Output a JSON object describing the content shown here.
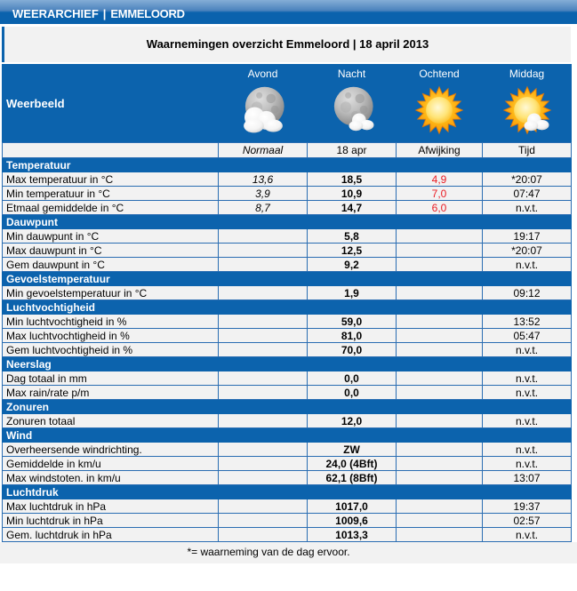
{
  "header": {
    "brand": "WEERARCHIEF",
    "divider": "|",
    "location": "EMMELOORD"
  },
  "title": "Waarnemingen overzicht Emmeloord | 18 april 2013",
  "weerbeeld": {
    "label": "Weerbeeld",
    "columns": [
      {
        "label": "Avond",
        "icon": "moon-clouds-icon"
      },
      {
        "label": "Nacht",
        "icon": "moon-cloud-icon"
      },
      {
        "label": "Ochtend",
        "icon": "sun-icon"
      },
      {
        "label": "Middag",
        "icon": "sun-cloud-icon"
      }
    ]
  },
  "subheader": [
    "Normaal",
    "18 apr",
    "Afwijking",
    "Tijd"
  ],
  "sections": [
    {
      "title": "Temperatuur",
      "rows": [
        {
          "label": "Max temperatuur in °C",
          "normaal": "13,6",
          "value": "18,5",
          "afwijking": "4,9",
          "tijd": "*20:07"
        },
        {
          "label": "Min temperatuur in °C",
          "normaal": "3,9",
          "value": "10,9",
          "afwijking": "7,0",
          "tijd": "07:47"
        },
        {
          "label": "Etmaal gemiddelde in °C",
          "normaal": "8,7",
          "value": "14,7",
          "afwijking": "6,0",
          "tijd": "n.v.t."
        }
      ]
    },
    {
      "title": "Dauwpunt",
      "rows": [
        {
          "label": "Min dauwpunt in °C",
          "normaal": "",
          "value": "5,8",
          "afwijking": "",
          "tijd": "19:17"
        },
        {
          "label": "Max dauwpunt in °C",
          "normaal": "",
          "value": "12,5",
          "afwijking": "",
          "tijd": "*20:07"
        },
        {
          "label": "Gem dauwpunt in °C",
          "normaal": "",
          "value": "9,2",
          "afwijking": "",
          "tijd": "n.v.t."
        }
      ]
    },
    {
      "title": "Gevoelstemperatuur",
      "rows": [
        {
          "label": "Min gevoelstemperatuur in °C",
          "normaal": "",
          "value": "1,9",
          "afwijking": "",
          "tijd": "09:12"
        }
      ]
    },
    {
      "title": "Luchtvochtigheid",
      "rows": [
        {
          "label": "Min luchtvochtigheid in %",
          "normaal": "",
          "value": "59,0",
          "afwijking": "",
          "tijd": "13:52"
        },
        {
          "label": "Max luchtvochtigheid in %",
          "normaal": "",
          "value": "81,0",
          "afwijking": "",
          "tijd": "05:47"
        },
        {
          "label": "Gem luchtvochtigheid in %",
          "normaal": "",
          "value": "70,0",
          "afwijking": "",
          "tijd": "n.v.t."
        }
      ]
    },
    {
      "title": "Neerslag",
      "rows": [
        {
          "label": "Dag totaal in mm",
          "normaal": "",
          "value": "0,0",
          "afwijking": "",
          "tijd": "n.v.t."
        },
        {
          "label": "Max rain/rate p/m",
          "normaal": "",
          "value": "0,0",
          "afwijking": "",
          "tijd": "n.v.t."
        }
      ]
    },
    {
      "title": "Zonuren",
      "rows": [
        {
          "label": "Zonuren totaal",
          "normaal": "",
          "value": "12,0",
          "afwijking": "",
          "tijd": "n.v.t."
        }
      ]
    },
    {
      "title": "Wind",
      "rows": [
        {
          "label": "Overheersende windrichting.",
          "normaal": "",
          "value": "ZW",
          "afwijking": "",
          "tijd": "n.v.t."
        },
        {
          "label": "Gemiddelde in km/u",
          "normaal": "",
          "value": "24,0 (4Bft)",
          "afwijking": "",
          "tijd": "n.v.t."
        },
        {
          "label": "Max windstoten. in km/u",
          "normaal": "",
          "value": "62,1 (8Bft)",
          "afwijking": "",
          "tijd": "13:07"
        }
      ]
    },
    {
      "title": "Luchtdruk",
      "rows": [
        {
          "label": "Max luchtdruk in hPa",
          "normaal": "",
          "value": "1017,0",
          "afwijking": "",
          "tijd": "19:37"
        },
        {
          "label": "Min luchtdruk in hPa",
          "normaal": "",
          "value": "1009,6",
          "afwijking": "",
          "tijd": "02:57"
        },
        {
          "label": "Gem. luchtdruk in hPa",
          "normaal": "",
          "value": "1013,3",
          "afwijking": "",
          "tijd": "n.v.t."
        }
      ]
    }
  ],
  "footnote": "*= waarneming van de dag ervoor.",
  "colors": {
    "accent_blue": "#0c63ad",
    "border_blue": "#2a6db2",
    "deviation_red": "#ea1c23",
    "cell_background": "#f2f2f2"
  }
}
